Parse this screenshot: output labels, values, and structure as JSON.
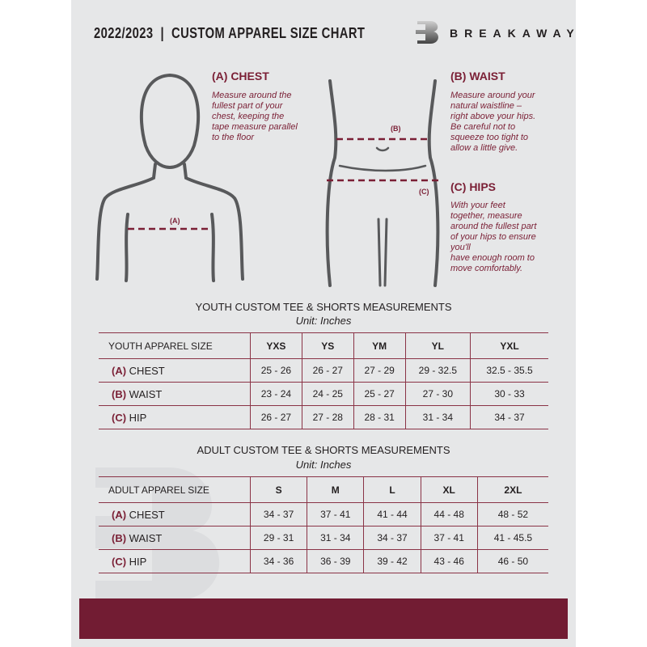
{
  "header": {
    "title": "2022/2023  |  CUSTOM APPAREL SIZE CHART",
    "brand": "BREAKAWAY",
    "logo_letter": "B"
  },
  "measures": {
    "chest": {
      "title": "(A) CHEST",
      "desc": [
        "Measure around the",
        "fullest part of your",
        "chest, keeping the",
        "tape measure parallel",
        "to the floor"
      ],
      "marker": "(A)"
    },
    "waist": {
      "title": "(B) WAIST",
      "desc": [
        "Measure around your",
        "natural waistline –",
        "right above your hips.",
        "Be careful not to",
        "squeeze too tight to",
        "allow a little give."
      ],
      "marker": "(B)"
    },
    "hips": {
      "title": "(C) HIPS",
      "desc": [
        "With your feet",
        "together, measure",
        "around the fullest part",
        "of your hips to ensure",
        "you'll",
        "have enough room to",
        "move comfortably."
      ],
      "marker": "(C)"
    }
  },
  "youth": {
    "title": "YOUTH CUSTOM TEE & SHORTS MEASUREMENTS",
    "unit": "Unit: Inches",
    "header": "YOUTH APPAREL SIZE",
    "sizes": [
      "YXS",
      "YS",
      "YM",
      "YL",
      "YXL"
    ],
    "rows": [
      {
        "code": "(A)",
        "label": "CHEST",
        "values": [
          "25 - 26",
          "26 - 27",
          "27 - 29",
          "29 - 32.5",
          "32.5 - 35.5"
        ]
      },
      {
        "code": "(B)",
        "label": "WAIST",
        "values": [
          "23 - 24",
          "24 - 25",
          "25 - 27",
          "27 - 30",
          "30 - 33"
        ]
      },
      {
        "code": "(C)",
        "label": "HIP",
        "values": [
          "26 - 27",
          "27 - 28",
          "28 - 31",
          "31 - 34",
          "34 - 37"
        ]
      }
    ]
  },
  "adult": {
    "title": "ADULT CUSTOM TEE & SHORTS MEASUREMENTS",
    "unit": "Unit: Inches",
    "header": "ADULT APPAREL SIZE",
    "sizes": [
      "S",
      "M",
      "L",
      "XL",
      "2XL"
    ],
    "rows": [
      {
        "code": "(A)",
        "label": "CHEST",
        "values": [
          "34 - 37",
          "37 - 41",
          "41 - 44",
          "44 - 48",
          "48 - 52"
        ]
      },
      {
        "code": "(B)",
        "label": "WAIST",
        "values": [
          "29 - 31",
          "31 - 34",
          "34 - 37",
          "37 - 41",
          "41 - 45.5"
        ]
      },
      {
        "code": "(C)",
        "label": "HIP",
        "values": [
          "34 - 36",
          "36 - 39",
          "39 - 42",
          "43 - 46",
          "46 - 50"
        ]
      }
    ]
  },
  "colors": {
    "accent": "#721c33",
    "panel": "#e6e7e8"
  }
}
